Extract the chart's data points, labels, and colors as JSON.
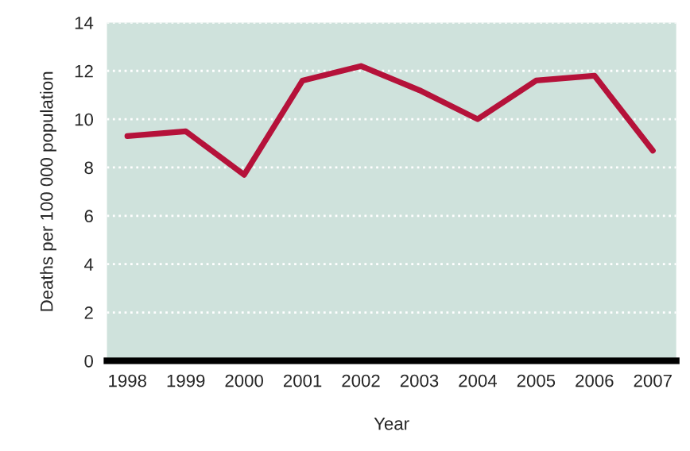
{
  "chart_data": {
    "type": "line",
    "xlabel": "Year",
    "ylabel": "Deaths per 100 000 population",
    "categories": [
      "1998",
      "1999",
      "2000",
      "2001",
      "2002",
      "2003",
      "2004",
      "2005",
      "2006",
      "2007"
    ],
    "series": [
      {
        "color": "#b5123a",
        "values": [
          9.3,
          9.5,
          7.7,
          11.6,
          12.2,
          11.2,
          10.0,
          11.6,
          11.8,
          8.7
        ]
      }
    ],
    "ylim": [
      0,
      14
    ],
    "yticks": [
      0,
      2,
      4,
      6,
      8,
      10,
      12,
      14
    ],
    "grid": "y",
    "line_style": "solid",
    "marker": "none",
    "legend": false
  }
}
